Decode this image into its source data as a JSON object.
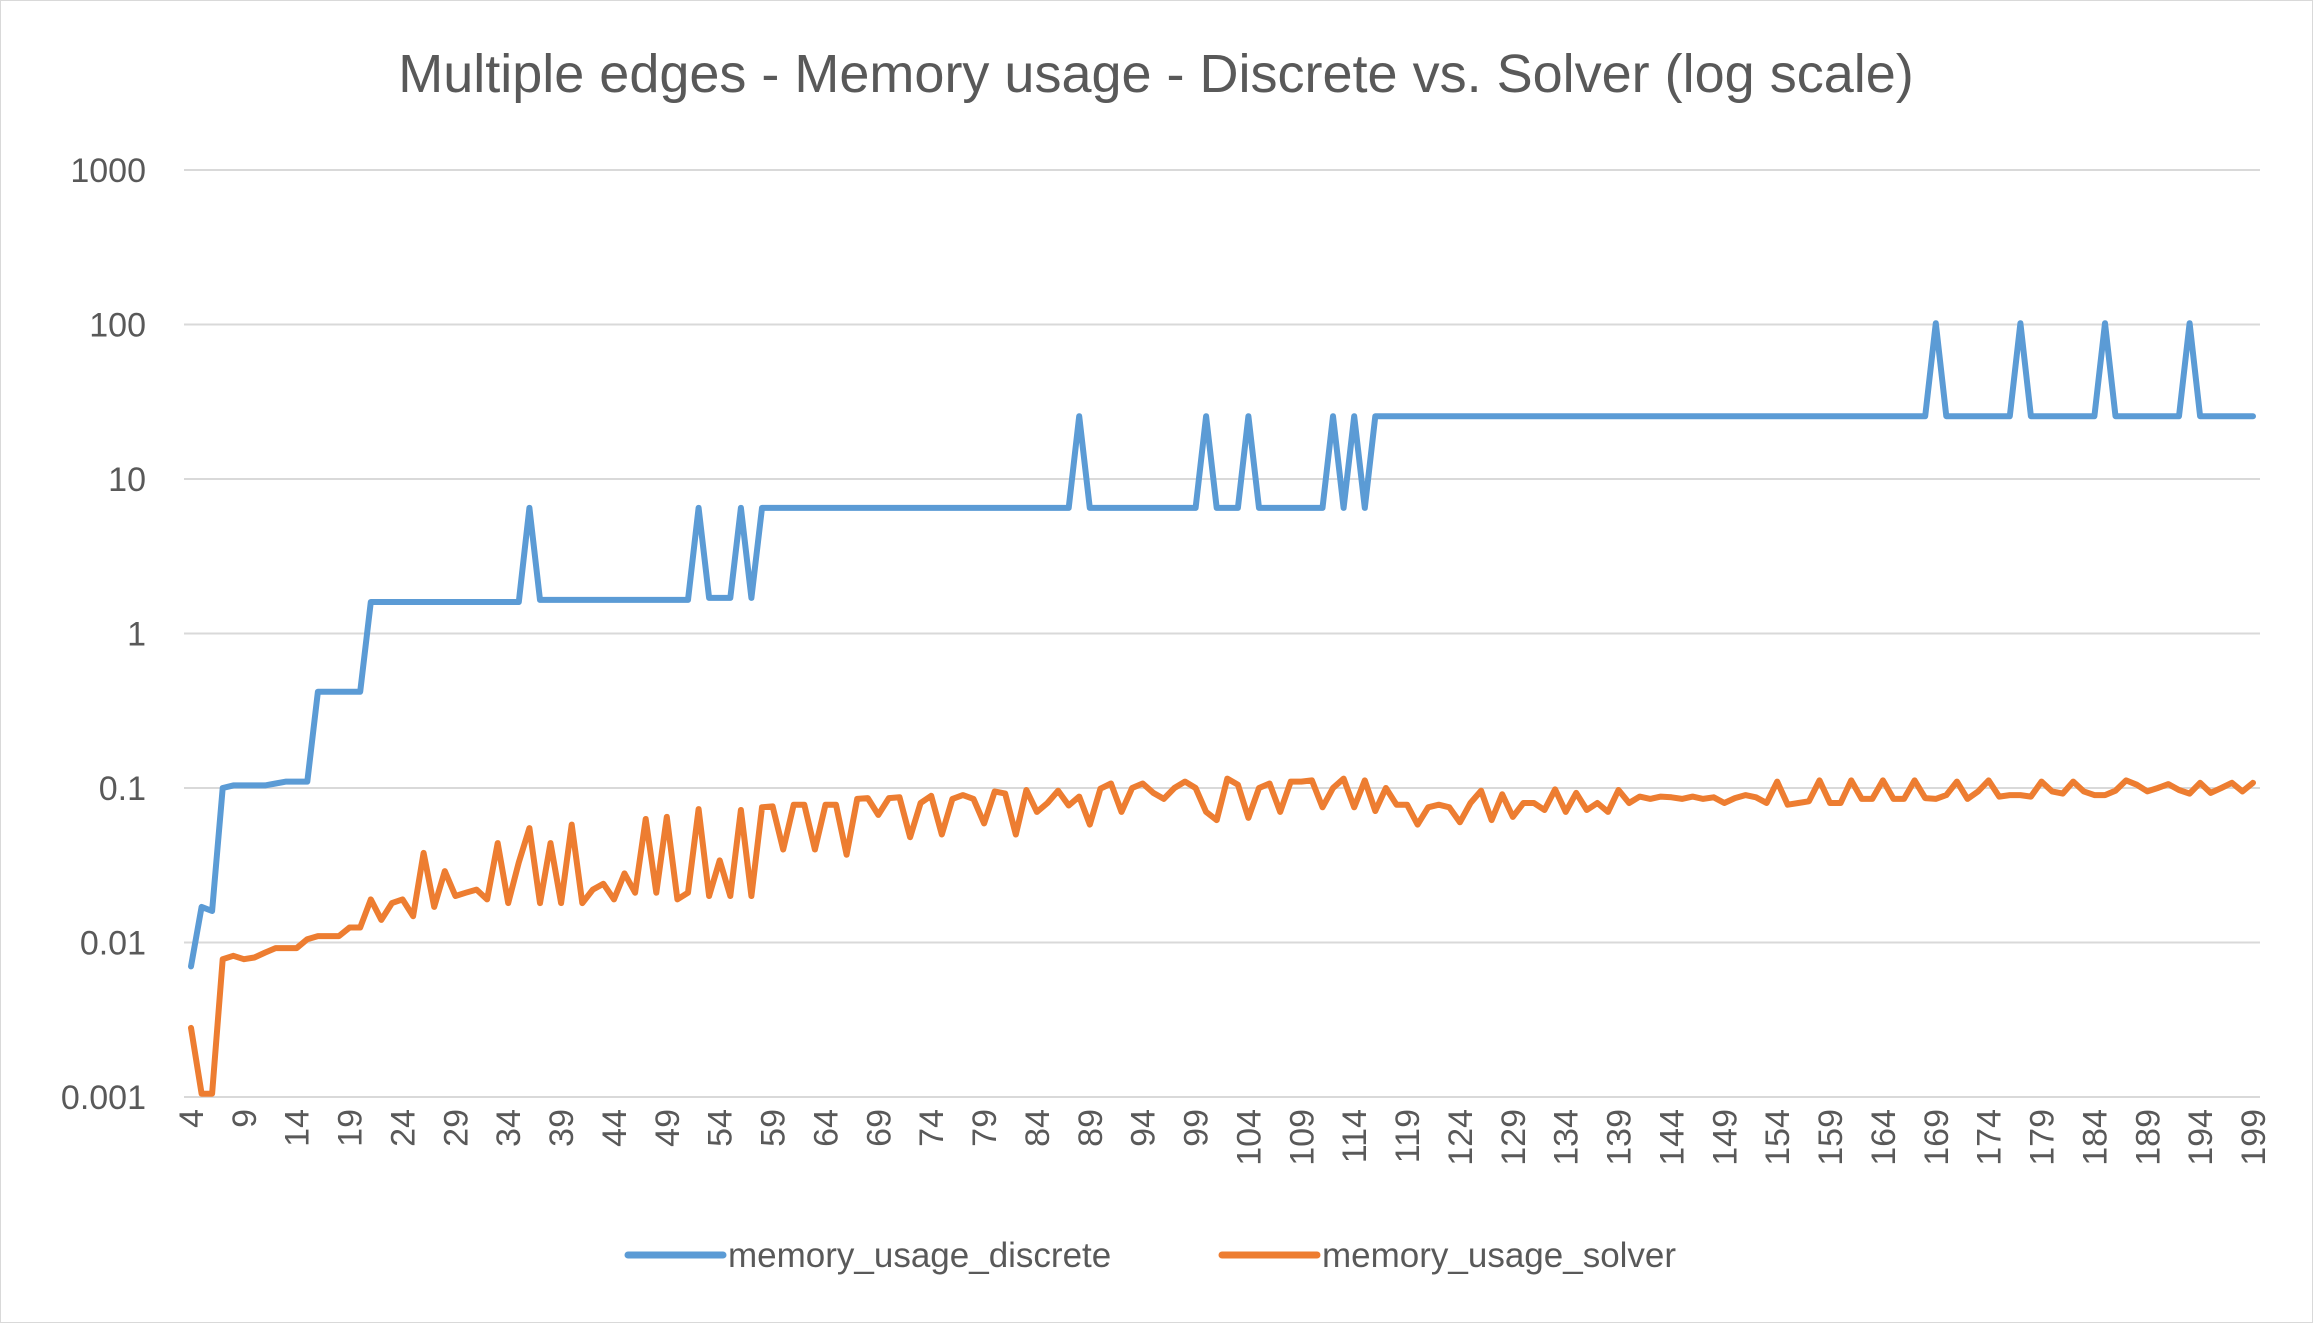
{
  "chart_data": {
    "type": "line",
    "title": "Multiple edges - Memory usage - Discrete vs. Solver (log scale)",
    "xlabel": "",
    "ylabel": "",
    "yscale": "log",
    "ylim": [
      0.001,
      1000
    ],
    "ytick_labels": [
      "0.001",
      "0.01",
      "0.1",
      "1",
      "10",
      "100",
      "1000"
    ],
    "ytick_values": [
      0.001,
      0.01,
      0.1,
      1,
      10,
      100,
      1000
    ],
    "x_start": 4,
    "x_end": 199,
    "x_tick_every": 5,
    "grid": "horizontal",
    "legend_position": "bottom",
    "colors": {
      "discrete": "#5b9bd5",
      "solver": "#ed7d31",
      "grid": "#d9d9d9",
      "text": "#595959"
    },
    "series": [
      {
        "name": "memory_usage_discrete",
        "color": "#5b9bd5",
        "segments": [
          [
            4,
            0.007
          ],
          [
            5,
            0.017
          ],
          [
            6,
            0.016
          ],
          [
            7,
            0.1
          ],
          [
            8,
            0.104
          ],
          [
            11,
            0.104
          ],
          [
            13,
            0.11
          ],
          [
            15,
            0.11
          ],
          [
            16,
            0.42
          ],
          [
            20,
            0.42
          ],
          [
            21,
            1.6
          ],
          [
            35,
            1.6
          ],
          [
            36,
            6.5
          ],
          [
            37,
            1.65
          ],
          [
            51,
            1.65
          ],
          [
            52,
            6.5
          ],
          [
            53,
            1.7
          ],
          [
            55,
            1.7
          ],
          [
            56,
            6.5
          ],
          [
            57,
            1.7
          ],
          [
            58,
            6.5
          ],
          [
            87,
            6.5
          ],
          [
            88,
            25.5
          ],
          [
            89,
            6.5
          ],
          [
            99,
            6.5
          ],
          [
            100,
            25.5
          ],
          [
            101,
            6.5
          ],
          [
            103,
            6.5
          ],
          [
            104,
            25.5
          ],
          [
            105,
            6.5
          ],
          [
            111,
            6.5
          ],
          [
            112,
            25.5
          ],
          [
            113,
            6.5
          ],
          [
            114,
            25.5
          ],
          [
            115,
            6.5
          ],
          [
            116,
            25.5
          ],
          [
            168,
            25.5
          ],
          [
            169,
            102
          ],
          [
            170,
            25.5
          ],
          [
            176,
            25.5
          ],
          [
            177,
            102
          ],
          [
            178,
            25.5
          ],
          [
            184,
            25.5
          ],
          [
            185,
            102
          ],
          [
            186,
            25.5
          ],
          [
            192,
            25.5
          ],
          [
            193,
            102
          ],
          [
            194,
            25.5
          ],
          [
            199,
            25.5
          ]
        ]
      },
      {
        "name": "memory_usage_solver",
        "color": "#ed7d31",
        "segments": [
          [
            4,
            0.0028
          ],
          [
            5,
            0.00105
          ],
          [
            6,
            0.00105
          ],
          [
            7,
            0.0078
          ],
          [
            8,
            0.0082
          ],
          [
            9,
            0.0078
          ],
          [
            10,
            0.008
          ],
          [
            12,
            0.0092
          ],
          [
            14,
            0.0092
          ],
          [
            15,
            0.0105
          ],
          [
            16,
            0.011
          ],
          [
            18,
            0.011
          ],
          [
            19,
            0.0125
          ],
          [
            20,
            0.0125
          ],
          [
            21,
            0.019
          ],
          [
            22,
            0.014
          ],
          [
            23,
            0.018
          ],
          [
            24,
            0.019
          ],
          [
            25,
            0.0148
          ],
          [
            26,
            0.038
          ],
          [
            27,
            0.017
          ],
          [
            28,
            0.029
          ],
          [
            29,
            0.02
          ],
          [
            30,
            0.021
          ],
          [
            31,
            0.022
          ],
          [
            32,
            0.019
          ],
          [
            33,
            0.044
          ],
          [
            34,
            0.018
          ],
          [
            35,
            0.033
          ],
          [
            36,
            0.055
          ],
          [
            37,
            0.018
          ],
          [
            38,
            0.044
          ],
          [
            39,
            0.018
          ],
          [
            40,
            0.058
          ],
          [
            41,
            0.018
          ],
          [
            42,
            0.022
          ],
          [
            43,
            0.024
          ],
          [
            44,
            0.019
          ],
          [
            45,
            0.028
          ],
          [
            46,
            0.021
          ],
          [
            47,
            0.063
          ],
          [
            48,
            0.021
          ],
          [
            49,
            0.065
          ],
          [
            50,
            0.019
          ],
          [
            51,
            0.021
          ],
          [
            52,
            0.073
          ],
          [
            53,
            0.02
          ],
          [
            54,
            0.034
          ],
          [
            55,
            0.02
          ],
          [
            56,
            0.072
          ],
          [
            57,
            0.02
          ],
          [
            58,
            0.075
          ],
          [
            59,
            0.076
          ],
          [
            60,
            0.04
          ],
          [
            61,
            0.078
          ],
          [
            62,
            0.078
          ],
          [
            63,
            0.04
          ],
          [
            64,
            0.078
          ],
          [
            65,
            0.078
          ],
          [
            66,
            0.037
          ],
          [
            67,
            0.085
          ],
          [
            68,
            0.086
          ],
          [
            69,
            0.067
          ],
          [
            70,
            0.086
          ],
          [
            71,
            0.087
          ],
          [
            72,
            0.048
          ],
          [
            73,
            0.08
          ],
          [
            74,
            0.089
          ],
          [
            75,
            0.05
          ],
          [
            76,
            0.085
          ],
          [
            77,
            0.09
          ],
          [
            78,
            0.085
          ],
          [
            79,
            0.059
          ],
          [
            80,
            0.095
          ],
          [
            81,
            0.092
          ],
          [
            82,
            0.05
          ],
          [
            83,
            0.097
          ],
          [
            84,
            0.07
          ],
          [
            85,
            0.08
          ],
          [
            86,
            0.096
          ],
          [
            87,
            0.077
          ],
          [
            88,
            0.088
          ],
          [
            89,
            0.058
          ],
          [
            90,
            0.099
          ],
          [
            91,
            0.107
          ],
          [
            92,
            0.07
          ],
          [
            93,
            0.1
          ],
          [
            94,
            0.107
          ],
          [
            95,
            0.093
          ],
          [
            96,
            0.085
          ],
          [
            97,
            0.1
          ],
          [
            98,
            0.11
          ],
          [
            99,
            0.1
          ],
          [
            100,
            0.07
          ],
          [
            101,
            0.062
          ],
          [
            102,
            0.115
          ],
          [
            103,
            0.105
          ],
          [
            104,
            0.064
          ],
          [
            105,
            0.1
          ],
          [
            106,
            0.107
          ],
          [
            107,
            0.07
          ],
          [
            108,
            0.11
          ],
          [
            109,
            0.11
          ],
          [
            110,
            0.112
          ],
          [
            111,
            0.075
          ],
          [
            112,
            0.1
          ],
          [
            113,
            0.115
          ],
          [
            114,
            0.075
          ],
          [
            115,
            0.112
          ],
          [
            116,
            0.071
          ],
          [
            117,
            0.1
          ],
          [
            118,
            0.078
          ],
          [
            119,
            0.078
          ],
          [
            120,
            0.058
          ],
          [
            121,
            0.075
          ],
          [
            122,
            0.078
          ],
          [
            123,
            0.075
          ],
          [
            124,
            0.06
          ],
          [
            125,
            0.08
          ],
          [
            126,
            0.096
          ],
          [
            127,
            0.062
          ],
          [
            128,
            0.091
          ],
          [
            129,
            0.065
          ],
          [
            130,
            0.08
          ],
          [
            131,
            0.08
          ],
          [
            132,
            0.072
          ],
          [
            133,
            0.098
          ],
          [
            134,
            0.07
          ],
          [
            135,
            0.093
          ],
          [
            136,
            0.072
          ],
          [
            137,
            0.08
          ],
          [
            138,
            0.07
          ],
          [
            139,
            0.097
          ],
          [
            140,
            0.08
          ],
          [
            141,
            0.088
          ],
          [
            142,
            0.085
          ],
          [
            143,
            0.088
          ],
          [
            144,
            0.087
          ],
          [
            145,
            0.085
          ],
          [
            146,
            0.088
          ],
          [
            147,
            0.085
          ],
          [
            148,
            0.087
          ],
          [
            149,
            0.08
          ],
          [
            150,
            0.086
          ],
          [
            151,
            0.09
          ],
          [
            152,
            0.087
          ],
          [
            153,
            0.08
          ],
          [
            154,
            0.11
          ],
          [
            155,
            0.078
          ],
          [
            156,
            0.08
          ],
          [
            157,
            0.082
          ],
          [
            158,
            0.112
          ],
          [
            159,
            0.08
          ],
          [
            160,
            0.08
          ],
          [
            161,
            0.112
          ],
          [
            162,
            0.085
          ],
          [
            163,
            0.085
          ],
          [
            164,
            0.112
          ],
          [
            165,
            0.085
          ],
          [
            166,
            0.085
          ],
          [
            167,
            0.112
          ],
          [
            168,
            0.086
          ],
          [
            169,
            0.085
          ],
          [
            170,
            0.09
          ],
          [
            171,
            0.11
          ],
          [
            172,
            0.085
          ],
          [
            173,
            0.095
          ],
          [
            174,
            0.112
          ],
          [
            175,
            0.088
          ],
          [
            176,
            0.09
          ],
          [
            177,
            0.09
          ],
          [
            178,
            0.088
          ],
          [
            179,
            0.11
          ],
          [
            180,
            0.095
          ],
          [
            181,
            0.092
          ],
          [
            182,
            0.11
          ],
          [
            183,
            0.095
          ],
          [
            184,
            0.09
          ],
          [
            185,
            0.09
          ],
          [
            186,
            0.096
          ],
          [
            187,
            0.112
          ],
          [
            188,
            0.105
          ],
          [
            189,
            0.095
          ],
          [
            190,
            0.1
          ],
          [
            191,
            0.106
          ],
          [
            192,
            0.097
          ],
          [
            193,
            0.092
          ],
          [
            194,
            0.108
          ],
          [
            195,
            0.093
          ],
          [
            196,
            0.1
          ],
          [
            197,
            0.108
          ],
          [
            198,
            0.095
          ],
          [
            199,
            0.108
          ]
        ]
      }
    ]
  }
}
